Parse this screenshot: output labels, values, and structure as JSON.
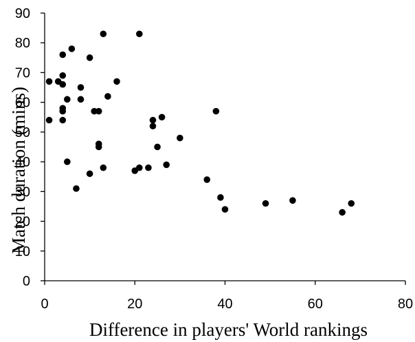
{
  "chart_data": {
    "type": "scatter",
    "title": "",
    "xlabel": "Difference in players' World rankings",
    "ylabel": "Match duration (mins)",
    "xlim": [
      0,
      80
    ],
    "ylim": [
      0,
      90
    ],
    "xticks": [
      0,
      20,
      40,
      60,
      80
    ],
    "yticks": [
      0,
      10,
      20,
      30,
      40,
      50,
      60,
      70,
      80,
      90
    ],
    "grid": false,
    "legend": "none",
    "marker_color": "#000000",
    "points": [
      {
        "x": 1,
        "y": 67
      },
      {
        "x": 1,
        "y": 54
      },
      {
        "x": 3,
        "y": 67
      },
      {
        "x": 4,
        "y": 76
      },
      {
        "x": 4,
        "y": 69
      },
      {
        "x": 4,
        "y": 66
      },
      {
        "x": 4,
        "y": 58
      },
      {
        "x": 4,
        "y": 57
      },
      {
        "x": 4,
        "y": 54
      },
      {
        "x": 5,
        "y": 61
      },
      {
        "x": 5,
        "y": 40
      },
      {
        "x": 6,
        "y": 78
      },
      {
        "x": 7,
        "y": 31
      },
      {
        "x": 8,
        "y": 65
      },
      {
        "x": 8,
        "y": 61
      },
      {
        "x": 10,
        "y": 75
      },
      {
        "x": 10,
        "y": 36
      },
      {
        "x": 11,
        "y": 57
      },
      {
        "x": 12,
        "y": 57
      },
      {
        "x": 12,
        "y": 46
      },
      {
        "x": 12,
        "y": 45
      },
      {
        "x": 13,
        "y": 83
      },
      {
        "x": 13,
        "y": 38
      },
      {
        "x": 14,
        "y": 62
      },
      {
        "x": 16,
        "y": 67
      },
      {
        "x": 20,
        "y": 37
      },
      {
        "x": 21,
        "y": 83
      },
      {
        "x": 21,
        "y": 38
      },
      {
        "x": 23,
        "y": 38
      },
      {
        "x": 24,
        "y": 54
      },
      {
        "x": 24,
        "y": 52
      },
      {
        "x": 25,
        "y": 45
      },
      {
        "x": 26,
        "y": 55
      },
      {
        "x": 27,
        "y": 39
      },
      {
        "x": 30,
        "y": 48
      },
      {
        "x": 36,
        "y": 34
      },
      {
        "x": 38,
        "y": 57
      },
      {
        "x": 39,
        "y": 28
      },
      {
        "x": 40,
        "y": 24
      },
      {
        "x": 49,
        "y": 26
      },
      {
        "x": 55,
        "y": 27
      },
      {
        "x": 66,
        "y": 23
      },
      {
        "x": 68,
        "y": 26
      }
    ]
  }
}
